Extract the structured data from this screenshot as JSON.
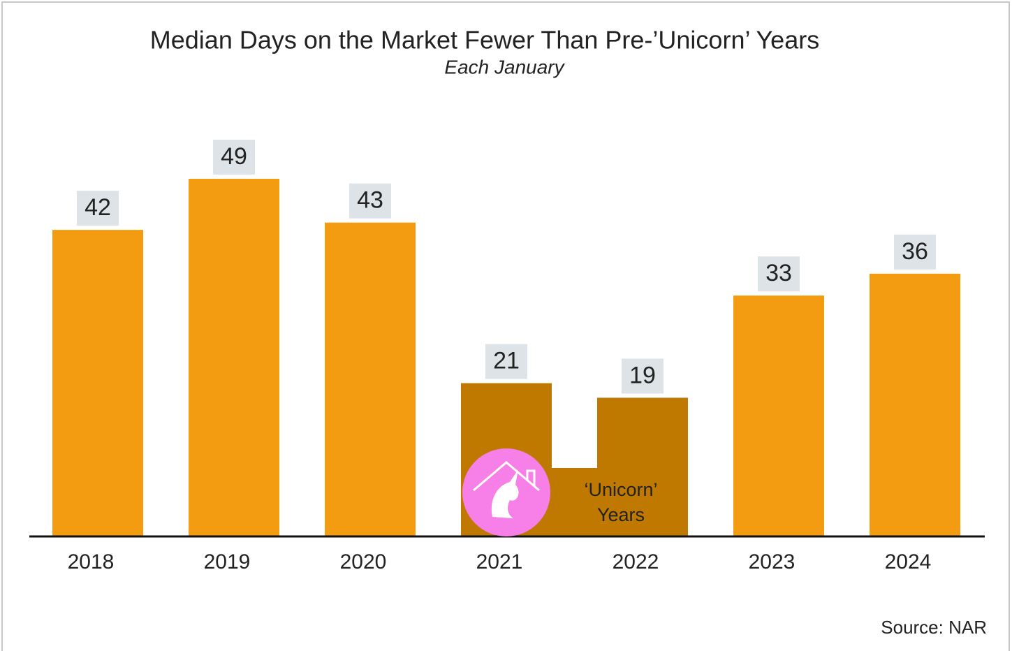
{
  "chart_data": {
    "type": "bar",
    "title": "Median Days on the Market Fewer Than Pre-’Unicorn’ Years",
    "subtitle": "Each January",
    "categories": [
      "2018",
      "2019",
      "2020",
      "2021",
      "2022",
      "2023",
      "2024"
    ],
    "values": [
      42,
      49,
      43,
      21,
      19,
      33,
      36
    ],
    "colors": [
      "#f39c12",
      "#f39c12",
      "#f39c12",
      "#bf7800",
      "#bf7800",
      "#f39c12",
      "#f39c12"
    ],
    "annotation": [
      "‘Unicorn’",
      "Years"
    ],
    "source": "Source: NAR"
  }
}
